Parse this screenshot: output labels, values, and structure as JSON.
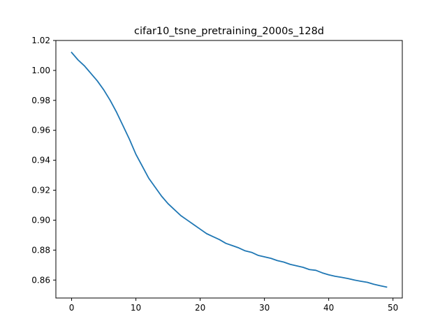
{
  "chart_data": {
    "type": "line",
    "title": "cifar10_tsne_pretraining_2000s_128d",
    "xlabel": "",
    "ylabel": "",
    "xlim": [
      -2.45,
      51.45
    ],
    "ylim": [
      0.848,
      1.02
    ],
    "xticks": [
      0,
      10,
      20,
      30,
      40,
      50
    ],
    "xtick_labels": [
      "0",
      "10",
      "20",
      "30",
      "40",
      "50"
    ],
    "yticks": [
      0.86,
      0.88,
      0.9,
      0.92,
      0.94,
      0.96,
      0.98,
      1.0,
      1.02
    ],
    "ytick_labels": [
      "0.86",
      "0.88",
      "0.90",
      "0.92",
      "0.94",
      "0.96",
      "0.98",
      "1.00",
      "1.02"
    ],
    "grid": false,
    "series": [
      {
        "color": "#1f77b4",
        "x": [
          0,
          1,
          2,
          3,
          4,
          5,
          6,
          7,
          8,
          9,
          10,
          11,
          12,
          13,
          14,
          15,
          16,
          17,
          18,
          19,
          20,
          21,
          22,
          23,
          24,
          25,
          26,
          27,
          28,
          29,
          30,
          31,
          32,
          33,
          34,
          35,
          36,
          37,
          38,
          39,
          40,
          41,
          42,
          43,
          44,
          45,
          46,
          47,
          48,
          49
        ],
        "y": [
          1.012,
          1.007,
          1.003,
          0.998,
          0.993,
          0.987,
          0.98,
          0.972,
          0.963,
          0.954,
          0.944,
          0.936,
          0.928,
          0.922,
          0.916,
          0.911,
          0.907,
          0.903,
          0.9,
          0.897,
          0.894,
          0.891,
          0.889,
          0.887,
          0.8845,
          0.883,
          0.8815,
          0.8795,
          0.8785,
          0.8765,
          0.8755,
          0.8745,
          0.873,
          0.872,
          0.8705,
          0.8695,
          0.8685,
          0.867,
          0.8665,
          0.8648,
          0.8635,
          0.8625,
          0.8618,
          0.861,
          0.86,
          0.8592,
          0.8585,
          0.8572,
          0.8562,
          0.8553
        ]
      }
    ]
  }
}
